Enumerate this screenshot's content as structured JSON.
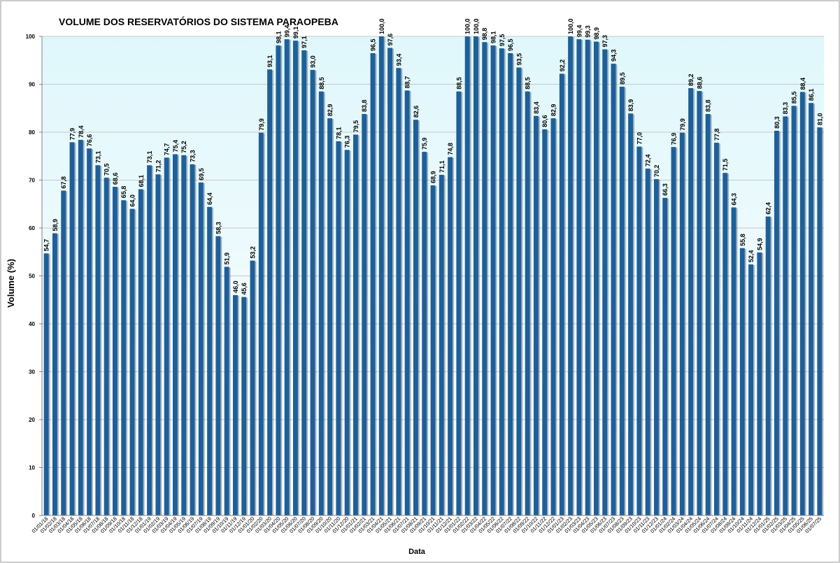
{
  "chart_data": {
    "type": "bar",
    "title": "VOLUME DOS RESERVATÓRIOS DO SISTEMA PARAOPEBA",
    "xlabel": "Data",
    "ylabel": "Volume (%)",
    "ylim": [
      0,
      100
    ],
    "yticks": [
      "0",
      "10",
      "20",
      "30",
      "40",
      "50",
      "60",
      "70",
      "80",
      "90",
      "100"
    ],
    "grid": true,
    "legend": "none",
    "colors": {
      "bar": "#1f5f99",
      "plot_upper": "#dff7fb",
      "plot_lower": "#ffffff",
      "grid": "#c8c8c8"
    },
    "categories": [
      "01/01/18",
      "01/02/18",
      "01/03/18",
      "01/04/18",
      "01/05/18",
      "01/06/18",
      "01/07/18",
      "01/08/18",
      "01/09/18",
      "01/10/18",
      "01/11/18",
      "01/12/18",
      "01/01/19",
      "01/02/19",
      "01/03/19",
      "01/04/19",
      "01/05/19",
      "01/06/19",
      "01/07/19",
      "01/08/19",
      "01/09/19",
      "01/10/19",
      "01/11/19",
      "01/12/19",
      "01/01/20",
      "01/02/20",
      "01/03/20",
      "01/04/20",
      "01/05/20",
      "01/06/20",
      "01/07/20",
      "01/08/20",
      "01/09/20",
      "01/10/20",
      "01/11/20",
      "01/12/20",
      "01/01/21",
      "01/02/21",
      "01/03/21",
      "01/04/21",
      "01/05/21",
      "01/06/21",
      "01/07/21",
      "01/08/21",
      "01/09/21",
      "01/10/21",
      "01/11/21",
      "01/12/21",
      "01/01/22",
      "01/02/22",
      "01/03/22",
      "01/04/22",
      "01/05/22",
      "01/06/22",
      "01/07/22",
      "01/08/22",
      "01/09/22",
      "01/10/22",
      "01/11/22",
      "01/12/22",
      "01/01/23",
      "01/02/23",
      "01/03/23",
      "01/04/23",
      "01/05/23",
      "01/06/23",
      "01/07/23",
      "01/08/23",
      "01/09/23",
      "01/10/23",
      "01/11/23",
      "01/12/23",
      "01/01/24",
      "01/02/24",
      "01/03/24",
      "01/04/24",
      "01/05/24",
      "01/06/24",
      "01/07/24",
      "01/08/24",
      "01/09/24",
      "01/10/24",
      "01/11/24",
      "01/12/24",
      "01/01/25",
      "01/02/25",
      "01/03/25",
      "01/04/25",
      "01/05/25",
      "01/06/25",
      "01/07/25"
    ],
    "values": [
      54.7,
      58.9,
      67.8,
      77.9,
      78.4,
      76.6,
      73.1,
      70.5,
      68.6,
      65.8,
      64.0,
      68.1,
      73.1,
      71.2,
      74.7,
      75.4,
      75.2,
      73.3,
      69.5,
      64.4,
      58.3,
      51.9,
      46.0,
      45.6,
      53.2,
      79.9,
      93.1,
      98.1,
      99.4,
      99.1,
      97.1,
      93.0,
      88.5,
      82.9,
      78.1,
      76.3,
      79.5,
      83.8,
      96.5,
      100.0,
      97.6,
      93.4,
      88.7,
      82.6,
      75.9,
      68.9,
      71.1,
      74.8,
      88.5,
      100.0,
      100.0,
      98.8,
      98.1,
      97.5,
      96.5,
      93.5,
      88.5,
      83.4,
      80.6,
      82.9,
      92.2,
      100.0,
      99.4,
      99.3,
      98.9,
      97.3,
      94.3,
      89.5,
      83.9,
      77.0,
      72.4,
      70.2,
      66.3,
      76.9,
      79.9,
      89.2,
      88.6,
      83.8,
      77.8,
      71.5,
      64.3,
      55.8,
      52.4,
      54.9,
      62.4,
      80.3,
      83.3,
      85.5,
      88.4,
      86.1,
      81.0
    ],
    "data_labels": [
      "54,7",
      "58,9",
      "67,8",
      "77,9",
      "78,4",
      "76,6",
      "73,1",
      "70,5",
      "68,6",
      "65,8",
      "64,0",
      "68,1",
      "73,1",
      "71,2",
      "74,7",
      "75,4",
      "75,2",
      "73,3",
      "69,5",
      "64,4",
      "58,3",
      "51,9",
      "46,0",
      "45,6",
      "53,2",
      "79,9",
      "93,1",
      "98,1",
      "99,4",
      "99,1",
      "97,1",
      "93,0",
      "88,5",
      "82,9",
      "78,1",
      "76,3",
      "79,5",
      "83,8",
      "96,5",
      "100,0",
      "97,6",
      "93,4",
      "88,7",
      "82,6",
      "75,9",
      "68,9",
      "71,1",
      "74,8",
      "88,5",
      "100,0",
      "100,0",
      "98,8",
      "98,1",
      "97,5",
      "96,5",
      "93,5",
      "88,5",
      "83,4",
      "80,6",
      "82,9",
      "92,2",
      "100,0",
      "99,4",
      "99,3",
      "98,9",
      "97,3",
      "94,3",
      "89,5",
      "83,9",
      "77,0",
      "72,4",
      "70,2",
      "66,3",
      "76,9",
      "79,9",
      "89,2",
      "88,6",
      "83,8",
      "77,8",
      "71,5",
      "64,3",
      "55,8",
      "52,4",
      "54,9",
      "62,4",
      "80,3",
      "83,3",
      "85,5",
      "88,4",
      "86,1",
      "81,0"
    ]
  }
}
